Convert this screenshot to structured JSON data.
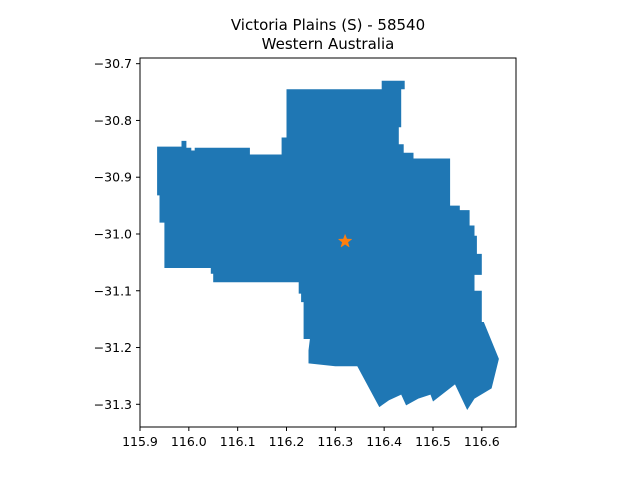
{
  "title": {
    "line1": "Victoria Plains (S) - 58540",
    "line2": "Western Australia"
  },
  "chart_data": {
    "type": "map",
    "region_name": "Victoria Plains (S)",
    "region_code": "58540",
    "state": "Western Australia",
    "xlim": [
      115.9,
      116.67
    ],
    "ylim": [
      -31.34,
      -30.69
    ],
    "x_ticks": [
      "115.9",
      "116.0",
      "116.1",
      "116.2",
      "116.3",
      "116.4",
      "116.5",
      "116.6"
    ],
    "y_ticks": [
      "−30.7",
      "−30.8",
      "−30.9",
      "−31.0",
      "−31.1",
      "−31.2",
      "−31.3"
    ],
    "x_tick_values": [
      115.9,
      116.0,
      116.1,
      116.2,
      116.3,
      116.4,
      116.5,
      116.6
    ],
    "y_tick_values": [
      -30.7,
      -30.8,
      -30.9,
      -31.0,
      -31.1,
      -31.2,
      -31.3
    ],
    "region_color": "#1f77b4",
    "marker": {
      "symbol": "star",
      "color": "#ff7f0e",
      "lon": 116.32,
      "lat": -31.013
    },
    "boundary": [
      [
        116.22,
        -30.745
      ],
      [
        116.395,
        -30.745
      ],
      [
        116.395,
        -30.73
      ],
      [
        116.442,
        -30.73
      ],
      [
        116.442,
        -30.745
      ],
      [
        116.435,
        -30.745
      ],
      [
        116.435,
        -30.812
      ],
      [
        116.43,
        -30.812
      ],
      [
        116.43,
        -30.842
      ],
      [
        116.44,
        -30.842
      ],
      [
        116.44,
        -30.857
      ],
      [
        116.46,
        -30.857
      ],
      [
        116.46,
        -30.867
      ],
      [
        116.535,
        -30.867
      ],
      [
        116.535,
        -30.95
      ],
      [
        116.555,
        -30.95
      ],
      [
        116.555,
        -30.958
      ],
      [
        116.575,
        -30.958
      ],
      [
        116.575,
        -30.985
      ],
      [
        116.585,
        -30.985
      ],
      [
        116.585,
        -31.003
      ],
      [
        116.59,
        -31.003
      ],
      [
        116.59,
        -31.035
      ],
      [
        116.6,
        -31.035
      ],
      [
        116.6,
        -31.072
      ],
      [
        116.585,
        -31.072
      ],
      [
        116.585,
        -31.1
      ],
      [
        116.6,
        -31.1
      ],
      [
        116.6,
        -31.155
      ],
      [
        116.604,
        -31.155
      ],
      [
        116.635,
        -31.22
      ],
      [
        116.62,
        -31.272
      ],
      [
        116.585,
        -31.29
      ],
      [
        116.57,
        -31.31
      ],
      [
        116.545,
        -31.265
      ],
      [
        116.5,
        -31.295
      ],
      [
        116.495,
        -31.283
      ],
      [
        116.47,
        -31.29
      ],
      [
        116.445,
        -31.302
      ],
      [
        116.435,
        -31.283
      ],
      [
        116.41,
        -31.293
      ],
      [
        116.39,
        -31.305
      ],
      [
        116.345,
        -31.233
      ],
      [
        116.3,
        -31.233
      ],
      [
        116.245,
        -31.228
      ],
      [
        116.245,
        -31.205
      ],
      [
        116.248,
        -31.185
      ],
      [
        116.235,
        -31.185
      ],
      [
        116.235,
        -31.12
      ],
      [
        116.23,
        -31.12
      ],
      [
        116.23,
        -31.105
      ],
      [
        116.225,
        -31.105
      ],
      [
        116.225,
        -31.085
      ],
      [
        116.14,
        -31.085
      ],
      [
        116.05,
        -31.085
      ],
      [
        116.05,
        -31.07
      ],
      [
        116.045,
        -31.07
      ],
      [
        116.045,
        -31.06
      ],
      [
        115.97,
        -31.06
      ],
      [
        115.97,
        -31.06
      ],
      [
        115.95,
        -31.06
      ],
      [
        115.95,
        -30.98
      ],
      [
        115.94,
        -30.98
      ],
      [
        115.94,
        -30.932
      ],
      [
        115.935,
        -30.932
      ],
      [
        115.935,
        -30.846
      ],
      [
        115.985,
        -30.846
      ],
      [
        115.985,
        -30.836
      ],
      [
        115.995,
        -30.836
      ],
      [
        115.995,
        -30.848
      ],
      [
        116.005,
        -30.848
      ],
      [
        116.005,
        -30.853
      ],
      [
        116.012,
        -30.853
      ],
      [
        116.012,
        -30.848
      ],
      [
        116.125,
        -30.848
      ],
      [
        116.125,
        -30.86
      ],
      [
        116.19,
        -30.86
      ],
      [
        116.19,
        -30.83
      ],
      [
        116.2,
        -30.83
      ],
      [
        116.2,
        -30.745
      ]
    ]
  }
}
